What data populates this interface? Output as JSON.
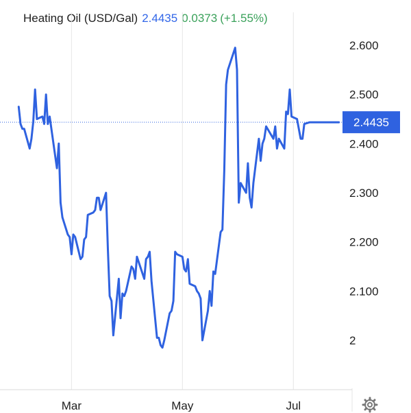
{
  "header": {
    "instrument": "Heating Oil (USD/Gal)",
    "price": "2.4435",
    "change": "0.0373",
    "change_pct": "(+1.55%)"
  },
  "colors": {
    "line": "#2f62e0",
    "price_text": "#3166e8",
    "change_text": "#3aa15a",
    "price_tag_bg": "#2f62e0",
    "grid": "#e6e6e6"
  },
  "icons": {
    "settings": "gear-icon"
  },
  "chart_data": {
    "type": "line",
    "title": "Heating Oil (USD/Gal)",
    "y_ticks": [
      {
        "value": 2.0,
        "label": "2"
      },
      {
        "value": 2.1,
        "label": "2.100"
      },
      {
        "value": 2.2,
        "label": "2.200"
      },
      {
        "value": 2.3,
        "label": "2.300"
      },
      {
        "value": 2.4,
        "label": "2.400"
      },
      {
        "value": 2.5,
        "label": "2.500"
      },
      {
        "value": 2.6,
        "label": "2.600"
      }
    ],
    "x_ticks": [
      {
        "date": "2023-03-01",
        "label": "Mar"
      },
      {
        "date": "2023-05-01",
        "label": "May"
      },
      {
        "date": "2023-07-01",
        "label": "Jul"
      }
    ],
    "x_range": [
      "2023-02-01",
      "2023-07-28"
    ],
    "ylim": [
      1.9,
      2.66
    ],
    "last_price": {
      "value": 2.4435,
      "label": "2.4435"
    },
    "grid": {
      "vertical": true,
      "horizontal": false
    },
    "series": [
      {
        "x": [
          "2023-01-31",
          "2023-02-01",
          "2023-02-02",
          "2023-02-03",
          "2023-02-06",
          "2023-02-07",
          "2023-02-08",
          "2023-02-09",
          "2023-02-10",
          "2023-02-13",
          "2023-02-14",
          "2023-02-15",
          "2023-02-16",
          "2023-02-17",
          "2023-02-21",
          "2023-02-22",
          "2023-02-23",
          "2023-02-24",
          "2023-02-27",
          "2023-02-28",
          "2023-03-01",
          "2023-03-02",
          "2023-03-03",
          "2023-03-06",
          "2023-03-07",
          "2023-03-08",
          "2023-03-09",
          "2023-03-10",
          "2023-03-13",
          "2023-03-14",
          "2023-03-15",
          "2023-03-16",
          "2023-03-17",
          "2023-03-20",
          "2023-03-21",
          "2023-03-22",
          "2023-03-23",
          "2023-03-24",
          "2023-03-27",
          "2023-03-28",
          "2023-03-29",
          "2023-03-30",
          "2023-03-31",
          "2023-04-03",
          "2023-04-04",
          "2023-04-05",
          "2023-04-06",
          "2023-04-10",
          "2023-04-11",
          "2023-04-12",
          "2023-04-13",
          "2023-04-14",
          "2023-04-17",
          "2023-04-18",
          "2023-04-19",
          "2023-04-20",
          "2023-04-21",
          "2023-04-24",
          "2023-04-25",
          "2023-04-26",
          "2023-04-27",
          "2023-04-28",
          "2023-05-01",
          "2023-05-02",
          "2023-05-03",
          "2023-05-04",
          "2023-05-05",
          "2023-05-08",
          "2023-05-09",
          "2023-05-10",
          "2023-05-11",
          "2023-05-12",
          "2023-05-15",
          "2023-05-16",
          "2023-05-17",
          "2023-05-18",
          "2023-05-19",
          "2023-05-22",
          "2023-05-23",
          "2023-05-24",
          "2023-05-25",
          "2023-05-26",
          "2023-05-30",
          "2023-05-31",
          "2023-06-01",
          "2023-06-02",
          "2023-06-05",
          "2023-06-06",
          "2023-06-07",
          "2023-06-08",
          "2023-06-09",
          "2023-06-12",
          "2023-06-13",
          "2023-06-14",
          "2023-06-15",
          "2023-06-16",
          "2023-06-20",
          "2023-06-21",
          "2023-06-22",
          "2023-06-23",
          "2023-06-26",
          "2023-06-27",
          "2023-06-28",
          "2023-06-29",
          "2023-06-30",
          "2023-07-03",
          "2023-07-05",
          "2023-07-06",
          "2023-07-07",
          "2023-07-10",
          "2023-07-11",
          "2023-07-12",
          "2023-07-13",
          "2023-07-14",
          "2023-07-17",
          "2023-07-18",
          "2023-07-19",
          "2023-07-20",
          "2023-07-21",
          "2023-07-24",
          "2023-07-25",
          "2023-07-26"
        ],
        "y": [
          2.475,
          2.44,
          2.43,
          2.43,
          2.39,
          2.41,
          2.445,
          2.51,
          2.45,
          2.455,
          2.44,
          2.5,
          2.44,
          2.455,
          2.35,
          2.4,
          2.28,
          2.25,
          2.215,
          2.21,
          2.175,
          2.215,
          2.21,
          2.165,
          2.17,
          2.205,
          2.21,
          2.255,
          2.26,
          2.265,
          2.29,
          2.29,
          2.265,
          2.3,
          2.185,
          2.09,
          2.08,
          2.01,
          2.125,
          2.045,
          2.095,
          2.09,
          2.1,
          2.15,
          2.145,
          2.125,
          2.17,
          2.125,
          2.165,
          2.17,
          2.18,
          2.12,
          2.005,
          2.005,
          1.99,
          1.985,
          2.0,
          2.055,
          2.06,
          2.08,
          2.18,
          2.175,
          2.17,
          2.145,
          2.14,
          2.165,
          2.115,
          2.11,
          2.1,
          2.095,
          2.085,
          2.0,
          2.06,
          2.1,
          2.07,
          2.14,
          2.135,
          2.22,
          2.225,
          2.345,
          2.52,
          2.55,
          2.595,
          2.55,
          2.28,
          2.32,
          2.3,
          2.36,
          2.29,
          2.27,
          2.32,
          2.41,
          2.365,
          2.4,
          2.41,
          2.435,
          2.41,
          2.435,
          2.39,
          2.41,
          2.39,
          2.465,
          2.46,
          2.51,
          2.455,
          2.45,
          2.41,
          2.41,
          2.44,
          2.4435,
          2.4435,
          2.4435,
          2.4435,
          2.4435,
          2.4435,
          2.4435,
          2.4435,
          2.4435,
          2.4435,
          2.4435,
          2.4435,
          2.4435
        ]
      }
    ]
  }
}
